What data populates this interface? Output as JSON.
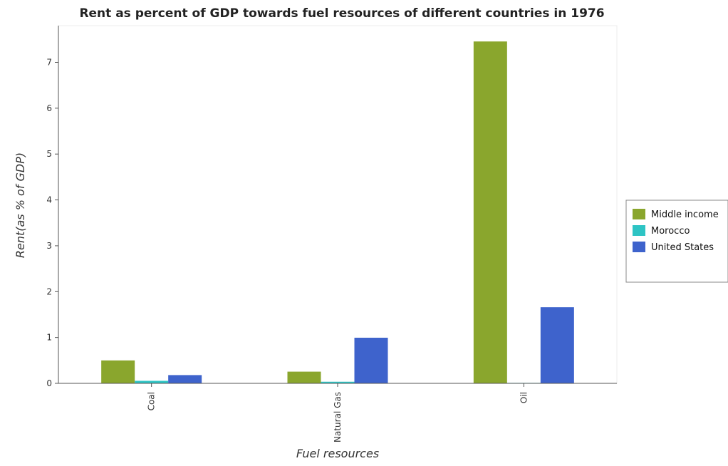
{
  "chart_data": {
    "type": "bar",
    "title": "Rent as percent of GDP towards fuel resources of different countries in 1976",
    "xlabel": "Fuel resources",
    "ylabel": "Rent(as % of GDP)",
    "categories": [
      "Coal",
      "Natural Gas",
      "Oil"
    ],
    "series": [
      {
        "name": "Middle income",
        "color": "#8aa62d",
        "values": [
          0.5,
          0.255,
          7.455
        ]
      },
      {
        "name": "Morocco",
        "color": "#2ec4c4",
        "values": [
          0.055,
          0.035,
          0.01
        ]
      },
      {
        "name": "United States",
        "color": "#3e63cc",
        "values": [
          0.18,
          0.995,
          1.66
        ]
      }
    ],
    "y_ticks": [
      "0",
      "1",
      "2",
      "3",
      "4",
      "5",
      "6",
      "7"
    ],
    "ylim": [
      0,
      7.8
    ],
    "grid": false,
    "legend_position": "right"
  }
}
